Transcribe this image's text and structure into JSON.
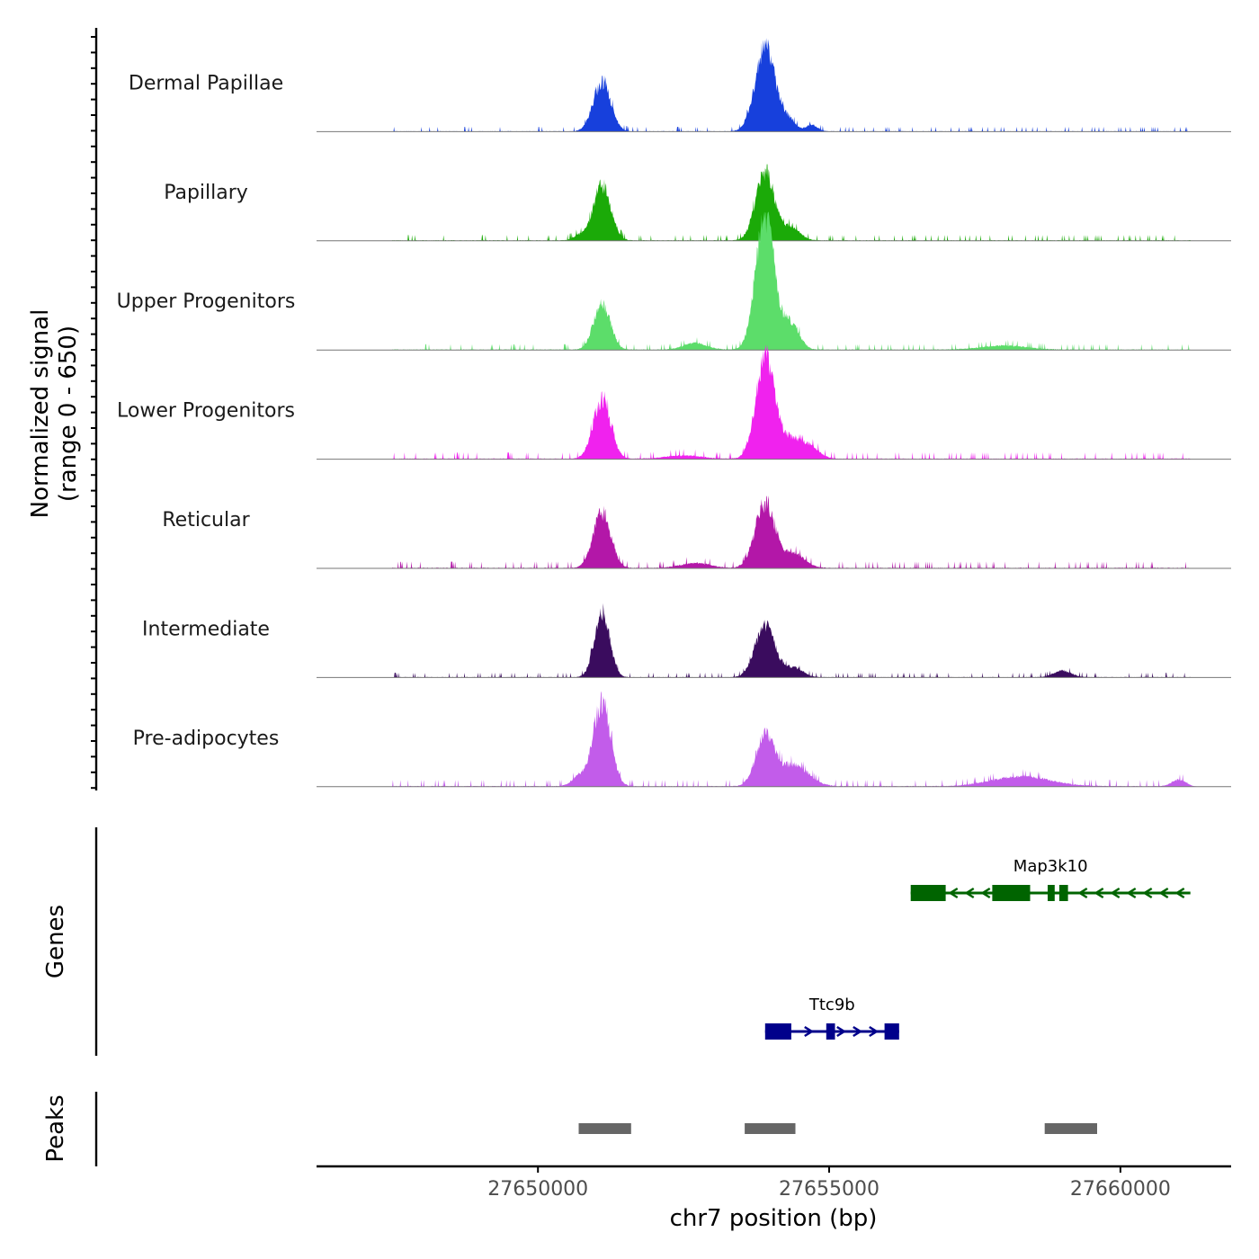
{
  "chart_data": {
    "type": "area",
    "title": "",
    "ylabel_line1": "Normalized signal",
    "ylabel_line2": "(range 0 - 650)",
    "ylim": [
      0,
      650
    ],
    "xlabel": "chr7 position (bp)",
    "xlim": [
      27646200,
      27661900
    ],
    "x_ticks": [
      27650000,
      27655000,
      27660000
    ],
    "x_tick_labels": [
      "27650000",
      "27655000",
      "27660000"
    ],
    "tracks": [
      {
        "name": "Dermal Papillae",
        "color": "#1740DC",
        "peaks": [
          {
            "center": 27651100,
            "height": 300,
            "width": 150
          },
          {
            "center": 27653900,
            "height": 520,
            "width": 170
          },
          {
            "center": 27654300,
            "height": 70,
            "width": 120
          },
          {
            "center": 27654700,
            "height": 40,
            "width": 100
          }
        ],
        "baseline": 10
      },
      {
        "name": "Papillary",
        "color": "#1BAA08",
        "peaks": [
          {
            "center": 27651100,
            "height": 340,
            "width": 150
          },
          {
            "center": 27653900,
            "height": 420,
            "width": 160
          },
          {
            "center": 27654350,
            "height": 80,
            "width": 150
          },
          {
            "center": 27650700,
            "height": 30,
            "width": 100
          }
        ],
        "baseline": 12
      },
      {
        "name": "Upper Progenitors",
        "color": "#5CDD6A",
        "peaks": [
          {
            "center": 27651100,
            "height": 290,
            "width": 140
          },
          {
            "center": 27653900,
            "height": 830,
            "width": 160
          },
          {
            "center": 27654350,
            "height": 160,
            "width": 140
          },
          {
            "center": 27652700,
            "height": 40,
            "width": 200
          },
          {
            "center": 27658000,
            "height": 25,
            "width": 400
          }
        ],
        "baseline": 12
      },
      {
        "name": "Lower Progenitors",
        "color": "#F022EE",
        "peaks": [
          {
            "center": 27651100,
            "height": 360,
            "width": 150
          },
          {
            "center": 27653900,
            "height": 620,
            "width": 160
          },
          {
            "center": 27654350,
            "height": 120,
            "width": 200
          },
          {
            "center": 27654700,
            "height": 60,
            "width": 150
          },
          {
            "center": 27652500,
            "height": 20,
            "width": 300
          }
        ],
        "baseline": 14
      },
      {
        "name": "Reticular",
        "color": "#B317A8",
        "peaks": [
          {
            "center": 27651100,
            "height": 340,
            "width": 150
          },
          {
            "center": 27653900,
            "height": 390,
            "width": 170
          },
          {
            "center": 27654400,
            "height": 90,
            "width": 180
          },
          {
            "center": 27652700,
            "height": 30,
            "width": 250
          }
        ],
        "baseline": 14
      },
      {
        "name": "Intermediate",
        "color": "#3A0C5E",
        "peaks": [
          {
            "center": 27651100,
            "height": 400,
            "width": 130
          },
          {
            "center": 27653900,
            "height": 320,
            "width": 170
          },
          {
            "center": 27654400,
            "height": 60,
            "width": 150
          },
          {
            "center": 27659000,
            "height": 40,
            "width": 150
          }
        ],
        "baseline": 10
      },
      {
        "name": "Pre-adipocytes",
        "color": "#C25CEA",
        "peaks": [
          {
            "center": 27651100,
            "height": 510,
            "width": 150
          },
          {
            "center": 27653900,
            "height": 300,
            "width": 160
          },
          {
            "center": 27654400,
            "height": 130,
            "width": 250
          },
          {
            "center": 27650700,
            "height": 60,
            "width": 120
          },
          {
            "center": 27658300,
            "height": 60,
            "width": 500
          },
          {
            "center": 27661000,
            "height": 40,
            "width": 120
          }
        ],
        "baseline": 14
      }
    ],
    "genes_label": "Genes",
    "genes": [
      {
        "name": "Map3k10",
        "strand": "-",
        "color": "#006400",
        "start": 27656400,
        "end": 27661200,
        "exons": [
          [
            27656400,
            27657000
          ],
          [
            27657800,
            27658450
          ],
          [
            27658750,
            27658870
          ],
          [
            27658950,
            27659100
          ]
        ]
      },
      {
        "name": "Ttc9b",
        "strand": "+",
        "color": "#00008B",
        "start": 27653900,
        "end": 27656200,
        "exons": [
          [
            27653900,
            27654350
          ],
          [
            27654950,
            27655100
          ],
          [
            27655950,
            27656200
          ]
        ]
      }
    ],
    "peaks_label": "Peaks",
    "called_peaks": [
      [
        27650700,
        27651600
      ],
      [
        27653550,
        27654420
      ],
      [
        27658700,
        27659600
      ]
    ]
  }
}
